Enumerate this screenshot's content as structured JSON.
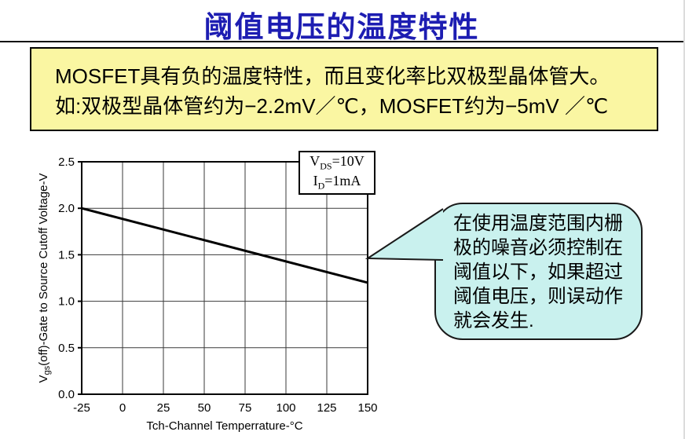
{
  "page": {
    "title": "阈值电压的温度特性",
    "title_color": "#1d1db2"
  },
  "info_box": {
    "line1": "MOSFET具有负的温度特性，而且变化率比双极型晶体管大。",
    "line2": "如:双极型晶体管约为−2.2mV／℃，MOSFET约为−5mV ／℃",
    "bg_color": "#faf6a2"
  },
  "chart_data": {
    "type": "line",
    "title": "",
    "xlabel": "Tch-Channel Temperrature-°C",
    "ylabel": "Vgs(off)-Gate to Source Cutoff Voltage-V",
    "ylabel_parts": {
      "prefix": "V",
      "sub": "gs",
      "rest": "(off)-Gate to Source Cutoff Voltage-V"
    },
    "x_tick_labels": [
      "-25",
      "0",
      "25",
      "50",
      "75",
      "100",
      "125",
      "150"
    ],
    "y_tick_labels": [
      "0.0",
      "0.5",
      "1.0",
      "1.5",
      "2.0",
      "2.5"
    ],
    "xlim": [
      -25,
      150
    ],
    "ylim": [
      0,
      2.5
    ],
    "grid": true,
    "legend_position": "top-right",
    "legend_entries": [
      {
        "prefix": "V",
        "sub": "DS",
        "rest": "=10V"
      },
      {
        "prefix": "I",
        "sub": "D",
        "rest": "=1mA"
      }
    ],
    "series": [
      {
        "name": "Vgs(off)",
        "x": [
          -25,
          150
        ],
        "y": [
          2.0,
          1.2
        ],
        "color": "#000000",
        "width": 3
      }
    ]
  },
  "callout": {
    "text": "在使用温度范围内栅极的噪音必须控制在阈值以下，如果超过阈值电压，则误动作就会发生.",
    "bg_color": "#c9f1ee",
    "border_color": "#1a1a1a"
  }
}
